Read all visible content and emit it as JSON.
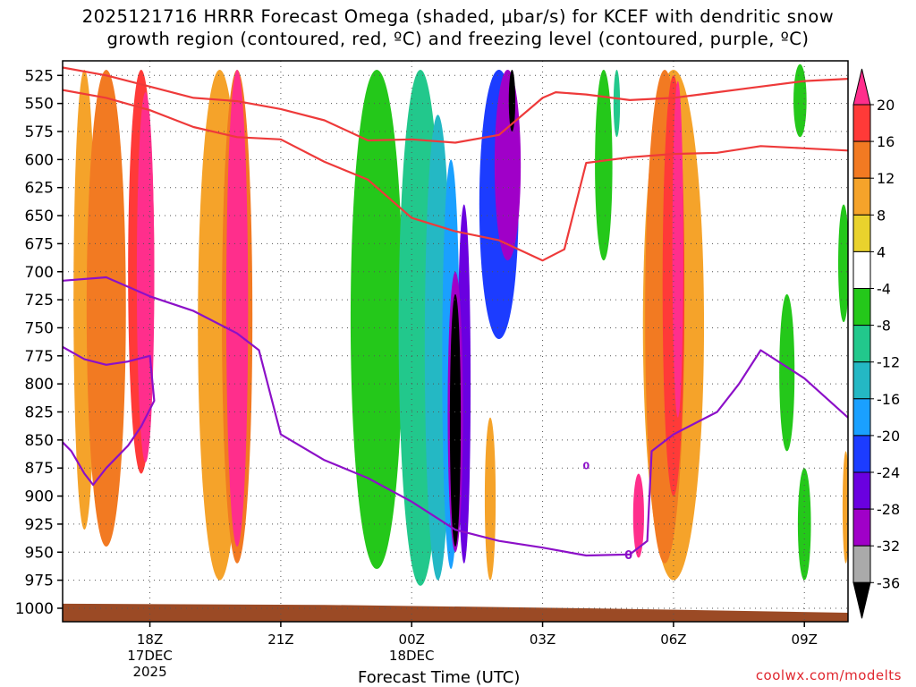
{
  "title": {
    "line1": "2025121716 HRRR Forecast Omega (shaded, μbar/s) for KCEF with dendritic snow",
    "line2": "growth region (contoured, red, ºC) and freezing level (contoured, purple, ºC)"
  },
  "credit": "coolwx.com/modelts",
  "chart_data": {
    "type": "heatmap",
    "title": "2025121716 HRRR Forecast Omega (shaded, μbar/s) for KCEF with dendritic snow growth region (contoured, red, ºC) and freezing level (contoured, purple, ºC)",
    "xlabel": "Forecast Time (UTC)",
    "ylabel": "",
    "x_ticks": [
      {
        "t": 2,
        "label": "18Z",
        "sub1": "17DEC",
        "sub2": "2025"
      },
      {
        "t": 5,
        "label": "21Z",
        "sub1": "",
        "sub2": ""
      },
      {
        "t": 8,
        "label": "00Z",
        "sub1": "18DEC",
        "sub2": ""
      },
      {
        "t": 11,
        "label": "03Z",
        "sub1": "",
        "sub2": ""
      },
      {
        "t": 14,
        "label": "06Z",
        "sub1": "",
        "sub2": ""
      },
      {
        "t": 17,
        "label": "09Z",
        "sub1": "",
        "sub2": ""
      }
    ],
    "xlim": [
      0,
      18
    ],
    "ylim": [
      1012,
      512
    ],
    "y_ticks": [
      525,
      550,
      575,
      600,
      625,
      650,
      675,
      700,
      725,
      750,
      775,
      800,
      825,
      850,
      875,
      900,
      925,
      950,
      975,
      1000
    ],
    "grid": "dotted",
    "colorbar": {
      "levels": [
        20,
        16,
        12,
        8,
        4,
        -4,
        -8,
        -12,
        -16,
        -20,
        -24,
        -28,
        -32,
        -36
      ],
      "colors": [
        "#ff2e8c",
        "#ff3a38",
        "#f27a22",
        "#f5a32a",
        "#e9d22d",
        "#ffffff",
        "#24c81a",
        "#22c88c",
        "#24b8c4",
        "#1aa0ff",
        "#1c3cff",
        "#6a00e0",
        "#a000c8",
        "#aaaaaa",
        "#000000"
      ]
    },
    "omega_cells": [
      {
        "t": 0.5,
        "p_top": 520,
        "p_bot": 930,
        "w": 0.5,
        "value": 8
      },
      {
        "t": 1.0,
        "p_top": 520,
        "p_bot": 945,
        "w": 0.9,
        "value": 12
      },
      {
        "t": 1.8,
        "p_top": 520,
        "p_bot": 880,
        "w": 0.6,
        "value": 16
      },
      {
        "t": 1.9,
        "p_top": 540,
        "p_bot": 870,
        "w": 0.4,
        "value": 20
      },
      {
        "t": 3.6,
        "p_top": 520,
        "p_bot": 975,
        "w": 1.0,
        "value": 8
      },
      {
        "t": 4.0,
        "p_top": 520,
        "p_bot": 960,
        "w": 0.7,
        "value": 12
      },
      {
        "t": 4.0,
        "p_top": 520,
        "p_bot": 945,
        "w": 0.5,
        "value": 20
      },
      {
        "t": 7.2,
        "p_top": 520,
        "p_bot": 965,
        "w": 1.2,
        "value": -8
      },
      {
        "t": 8.2,
        "p_top": 520,
        "p_bot": 980,
        "w": 1.0,
        "value": -12
      },
      {
        "t": 8.6,
        "p_top": 560,
        "p_bot": 975,
        "w": 0.6,
        "value": -16
      },
      {
        "t": 8.9,
        "p_top": 600,
        "p_bot": 965,
        "w": 0.4,
        "value": -20
      },
      {
        "t": 9.2,
        "p_top": 640,
        "p_bot": 960,
        "w": 0.3,
        "value": -28
      },
      {
        "t": 10.0,
        "p_top": 520,
        "p_bot": 760,
        "w": 0.9,
        "value": -24
      },
      {
        "t": 10.2,
        "p_top": 520,
        "p_bot": 690,
        "w": 0.6,
        "value": -32
      },
      {
        "t": 10.3,
        "p_top": 520,
        "p_bot": 575,
        "w": 0.15,
        "value": -36
      },
      {
        "t": 9.0,
        "p_top": 700,
        "p_bot": 950,
        "w": 0.35,
        "value": -32
      },
      {
        "t": 9.0,
        "p_top": 720,
        "p_bot": 945,
        "w": 0.25,
        "value": -36
      },
      {
        "t": 9.8,
        "p_top": 830,
        "p_bot": 975,
        "w": 0.25,
        "value": 8
      },
      {
        "t": 12.4,
        "p_top": 520,
        "p_bot": 690,
        "w": 0.4,
        "value": -8
      },
      {
        "t": 12.7,
        "p_top": 520,
        "p_bot": 580,
        "w": 0.15,
        "value": -12
      },
      {
        "t": 14.0,
        "p_top": 520,
        "p_bot": 975,
        "w": 1.4,
        "value": 8
      },
      {
        "t": 13.8,
        "p_top": 520,
        "p_bot": 960,
        "w": 0.9,
        "value": 12
      },
      {
        "t": 14.0,
        "p_top": 525,
        "p_bot": 900,
        "w": 0.5,
        "value": 16
      },
      {
        "t": 14.1,
        "p_top": 530,
        "p_bot": 830,
        "w": 0.25,
        "value": 20
      },
      {
        "t": 13.2,
        "p_top": 880,
        "p_bot": 955,
        "w": 0.25,
        "value": 20
      },
      {
        "t": 16.9,
        "p_top": 515,
        "p_bot": 580,
        "w": 0.3,
        "value": -8
      },
      {
        "t": 16.6,
        "p_top": 720,
        "p_bot": 860,
        "w": 0.35,
        "value": -8
      },
      {
        "t": 17.0,
        "p_top": 875,
        "p_bot": 975,
        "w": 0.3,
        "value": -8
      },
      {
        "t": 17.9,
        "p_top": 640,
        "p_bot": 745,
        "w": 0.25,
        "value": -8
      },
      {
        "t": 17.95,
        "p_top": 860,
        "p_bot": 960,
        "w": 0.15,
        "value": 8
      }
    ],
    "ground_surface": [
      {
        "t": 0,
        "p": 996
      },
      {
        "t": 6,
        "p": 997
      },
      {
        "t": 12,
        "p": 1000
      },
      {
        "t": 18,
        "p": 1004
      }
    ],
    "dgz_contours": [
      {
        "name": "",
        "label": "",
        "points": [
          [
            0,
            538
          ],
          [
            1.0,
            545
          ],
          [
            2.0,
            556
          ],
          [
            3.0,
            571
          ],
          [
            4.0,
            580
          ],
          [
            5.0,
            582
          ],
          [
            6.0,
            602
          ],
          [
            7.0,
            618
          ],
          [
            8.0,
            652
          ],
          [
            9.0,
            664
          ],
          [
            10.0,
            672
          ],
          [
            11.0,
            690
          ],
          [
            11.5,
            680
          ],
          [
            12.0,
            603
          ],
          [
            13.0,
            598
          ],
          [
            14.0,
            595
          ],
          [
            15.0,
            594
          ],
          [
            16.0,
            588
          ],
          [
            17.0,
            590
          ],
          [
            18.0,
            592
          ]
        ]
      },
      {
        "name": "",
        "label": "",
        "points": [
          [
            0,
            518
          ],
          [
            1.0,
            525
          ],
          [
            2.0,
            535
          ],
          [
            3.0,
            545
          ],
          [
            4.0,
            548
          ],
          [
            5.0,
            555
          ],
          [
            6.0,
            565
          ],
          [
            7.0,
            583
          ],
          [
            8.0,
            582
          ],
          [
            9.0,
            585
          ],
          [
            10.0,
            578
          ],
          [
            11.0,
            545
          ],
          [
            11.3,
            540
          ],
          [
            12.0,
            542
          ],
          [
            13.0,
            547
          ],
          [
            14.0,
            545
          ],
          [
            15.0,
            540
          ],
          [
            16.0,
            535
          ],
          [
            17.0,
            530
          ],
          [
            18.0,
            528
          ]
        ]
      }
    ],
    "freezing_contours": [
      {
        "label": "0",
        "points": [
          [
            0,
            708
          ],
          [
            1.0,
            705
          ],
          [
            2.0,
            722
          ],
          [
            3.0,
            735
          ],
          [
            4.0,
            755
          ],
          [
            4.5,
            770
          ],
          [
            5.0,
            845
          ],
          [
            6.0,
            868
          ],
          [
            7.0,
            884
          ],
          [
            8.0,
            905
          ],
          [
            9.0,
            930
          ],
          [
            10.0,
            940
          ],
          [
            11.0,
            946
          ],
          [
            12.0,
            953
          ],
          [
            13.0,
            952
          ],
          [
            13.4,
            940
          ],
          [
            13.5,
            860
          ],
          [
            14.0,
            845
          ],
          [
            15.0,
            825
          ],
          [
            15.5,
            800
          ],
          [
            16.0,
            770
          ],
          [
            17.0,
            795
          ],
          [
            18.0,
            830
          ]
        ]
      },
      {
        "label": "",
        "points": [
          [
            0,
            767
          ],
          [
            0.5,
            778
          ],
          [
            1.0,
            783
          ],
          [
            1.5,
            780
          ],
          [
            2.0,
            775
          ],
          [
            2.1,
            815
          ],
          [
            1.8,
            838
          ],
          [
            1.5,
            855
          ],
          [
            1.0,
            875
          ],
          [
            0.7,
            890
          ],
          [
            0.5,
            880
          ],
          [
            0.2,
            860
          ],
          [
            0.0,
            852
          ]
        ]
      }
    ],
    "freezing_small_label": {
      "label": "0",
      "t": 12.0,
      "p": 873
    }
  }
}
